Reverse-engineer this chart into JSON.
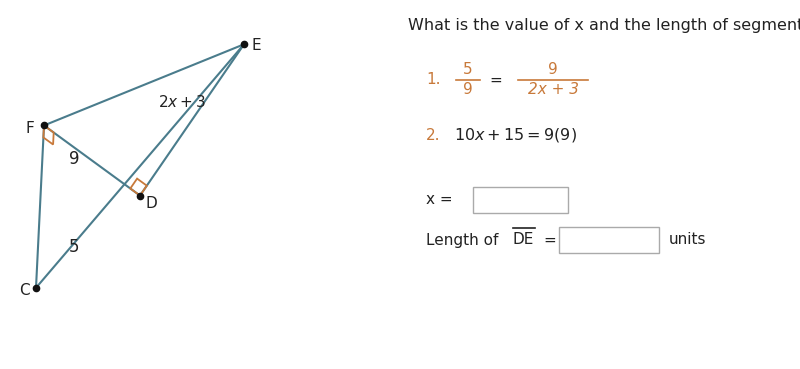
{
  "bg_color": "#ffffff",
  "triangle_color": "#4a7c8c",
  "right_angle_color": "#c8793a",
  "label_color_black": "#222222",
  "label_color_orange": "#c8793a",
  "points": {
    "F": [
      0.055,
      0.66
    ],
    "E": [
      0.305,
      0.88
    ],
    "C": [
      0.045,
      0.22
    ],
    "D": [
      0.175,
      0.47
    ]
  },
  "title": "What is the value of x and the length of segment DE?",
  "step2_text": "10x + 15 = 9(9)"
}
